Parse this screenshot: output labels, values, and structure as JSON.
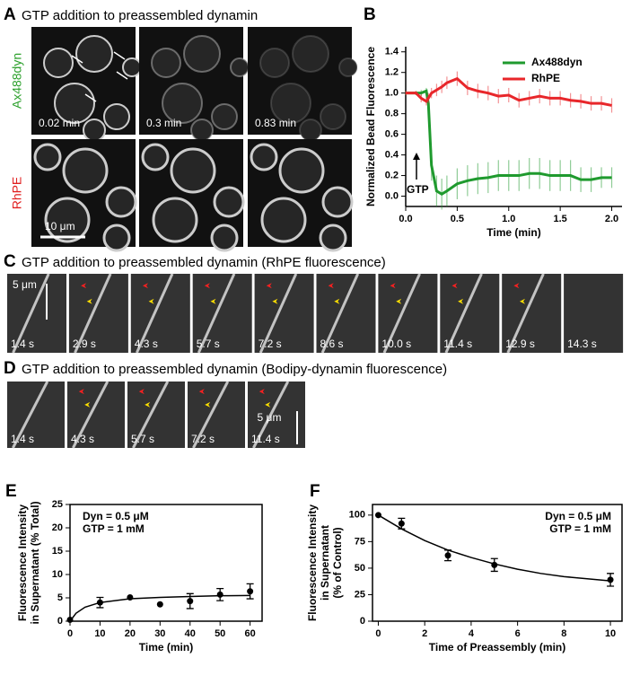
{
  "panel_a": {
    "label": "A",
    "title": "GTP addition to preassembled dynamin",
    "row_labels": [
      "Ax488dyn",
      "RhPE"
    ],
    "times": [
      "0.02 min",
      "0.3 min",
      "0.83 min"
    ],
    "scale_bar": "10 μm"
  },
  "panel_c": {
    "label": "C",
    "title": "GTP addition to preassembled dynamin (RhPE fluorescence)",
    "times": [
      "1.4 s",
      "2.9 s",
      "4.3 s",
      "5.7 s",
      "7.2 s",
      "8.6 s",
      "10.0 s",
      "11.4 s",
      "12.9 s",
      "14.3 s"
    ],
    "scale_bar": "5 μm"
  },
  "panel_d": {
    "label": "D",
    "title": "GTP addition to preassembled dynamin (Bodipy-dynamin fluorescence)",
    "times": [
      "1.4 s",
      "4.3 s",
      "5.7 s",
      "7.2 s",
      "11.4 s"
    ],
    "scale_bar": "5 μm"
  },
  "chart_data": [
    {
      "type": "line",
      "panel": "B",
      "box": false,
      "xlabel": "Time (min)",
      "ylabel": [
        "Normalized Bead Fluorescence"
      ],
      "annotations": [
        "GTP"
      ],
      "x": [
        0,
        0.1,
        0.15,
        0.2,
        0.22,
        0.25,
        0.3,
        0.35,
        0.4,
        0.5,
        0.6,
        0.7,
        0.8,
        0.9,
        1.0,
        1.1,
        1.2,
        1.3,
        1.4,
        1.5,
        1.6,
        1.7,
        1.8,
        1.9,
        2.0
      ],
      "series": [
        {
          "name": "Ax488dyn",
          "color": "#1f9a2e",
          "values": [
            1.0,
            1.0,
            1.0,
            1.02,
            0.9,
            0.3,
            0.05,
            0.02,
            0.05,
            0.12,
            0.15,
            0.17,
            0.18,
            0.2,
            0.2,
            0.2,
            0.22,
            0.22,
            0.2,
            0.2,
            0.2,
            0.16,
            0.16,
            0.18,
            0.18
          ],
          "errors": [
            0.02,
            0.02,
            0.03,
            0.03,
            0.08,
            0.15,
            0.15,
            0.15,
            0.15,
            0.15,
            0.15,
            0.15,
            0.15,
            0.15,
            0.15,
            0.15,
            0.15,
            0.15,
            0.15,
            0.15,
            0.15,
            0.12,
            0.12,
            0.1,
            0.1
          ]
        },
        {
          "name": "RhPE",
          "color": "#e8262a",
          "values": [
            1.0,
            1.0,
            0.95,
            0.92,
            0.95,
            1.0,
            1.03,
            1.06,
            1.1,
            1.14,
            1.05,
            1.02,
            1.0,
            0.97,
            0.98,
            0.93,
            0.95,
            0.97,
            0.95,
            0.95,
            0.93,
            0.92,
            0.9,
            0.9,
            0.88
          ],
          "errors": [
            0.02,
            0.02,
            0.04,
            0.04,
            0.05,
            0.05,
            0.06,
            0.06,
            0.06,
            0.07,
            0.07,
            0.07,
            0.07,
            0.07,
            0.07,
            0.07,
            0.07,
            0.07,
            0.07,
            0.07,
            0.07,
            0.07,
            0.07,
            0.07,
            0.07
          ]
        }
      ],
      "xlim": [
        0,
        2.1
      ],
      "ylim": [
        -0.1,
        1.45
      ],
      "xticks": [
        {
          "value": 0,
          "label": "0.0"
        },
        {
          "value": 0.5,
          "label": "0.5"
        },
        {
          "value": 1,
          "label": "1.0"
        },
        {
          "value": 1.5,
          "label": "1.5"
        },
        {
          "value": 2,
          "label": "2.0"
        }
      ],
      "yticks": [
        {
          "value": 0,
          "label": "0.0"
        },
        {
          "value": 0.2,
          "label": "0.2"
        },
        {
          "value": 0.4,
          "label": "0.4"
        },
        {
          "value": 0.6,
          "label": "0.6"
        },
        {
          "value": 0.8,
          "label": "0.8"
        },
        {
          "value": 1,
          "label": "1.0"
        },
        {
          "value": 1.2,
          "label": "1.2"
        },
        {
          "value": 1.4,
          "label": "1.4"
        }
      ]
    },
    {
      "type": "scatter",
      "panel": "E",
      "box": true,
      "color": "#000000",
      "xlabel": "Time (min)",
      "ylabel": [
        "Fluorescence Intensity",
        "in Supernatant (% Total)"
      ],
      "annotations": [
        "Dyn = 0.5 μM",
        "GTP = 1 mM"
      ],
      "x": [
        0,
        10,
        20,
        30,
        40,
        50,
        60
      ],
      "values": [
        0.3,
        4,
        5.1,
        3.6,
        4.3,
        5.7,
        6.4
      ],
      "errors": [
        0,
        1.1,
        0,
        0,
        1.6,
        1.3,
        1.6
      ],
      "fit": {
        "x": [
          0,
          2,
          5,
          10,
          20,
          30,
          40,
          50,
          60
        ],
        "values": [
          0,
          1.7,
          3,
          4,
          4.8,
          5.1,
          5.3,
          5.45,
          5.5
        ]
      },
      "xlim": [
        0,
        64
      ],
      "ylim": [
        0,
        25
      ],
      "xticks": [
        0,
        10,
        20,
        30,
        40,
        50,
        60
      ],
      "yticks": [
        0,
        5,
        10,
        15,
        20,
        25
      ]
    },
    {
      "type": "scatter",
      "panel": "F",
      "box": true,
      "color": "#000000",
      "xlabel": "Time of Preassembly (min)",
      "ylabel": [
        "Fluorescence Intensity",
        "in Supernatant",
        "(% of Control)"
      ],
      "annotations": [
        "Dyn = 0.5 μM",
        "GTP = 1 mM"
      ],
      "x": [
        0,
        1,
        3,
        5,
        10
      ],
      "values": [
        100,
        92,
        62,
        53,
        39
      ],
      "errors": [
        0,
        5,
        5,
        6,
        6
      ],
      "fit": {
        "x": [
          0,
          1,
          2,
          3,
          4,
          5,
          6,
          7,
          8,
          9,
          10
        ],
        "values": [
          100,
          87,
          76,
          67,
          60,
          54,
          49,
          45,
          42,
          40,
          38
        ]
      },
      "xlim": [
        -0.25,
        10.5
      ],
      "ylim": [
        0,
        110
      ],
      "xticks": [
        0,
        2,
        4,
        6,
        8,
        10
      ],
      "yticks": [
        0,
        25,
        50,
        75,
        100
      ]
    }
  ]
}
